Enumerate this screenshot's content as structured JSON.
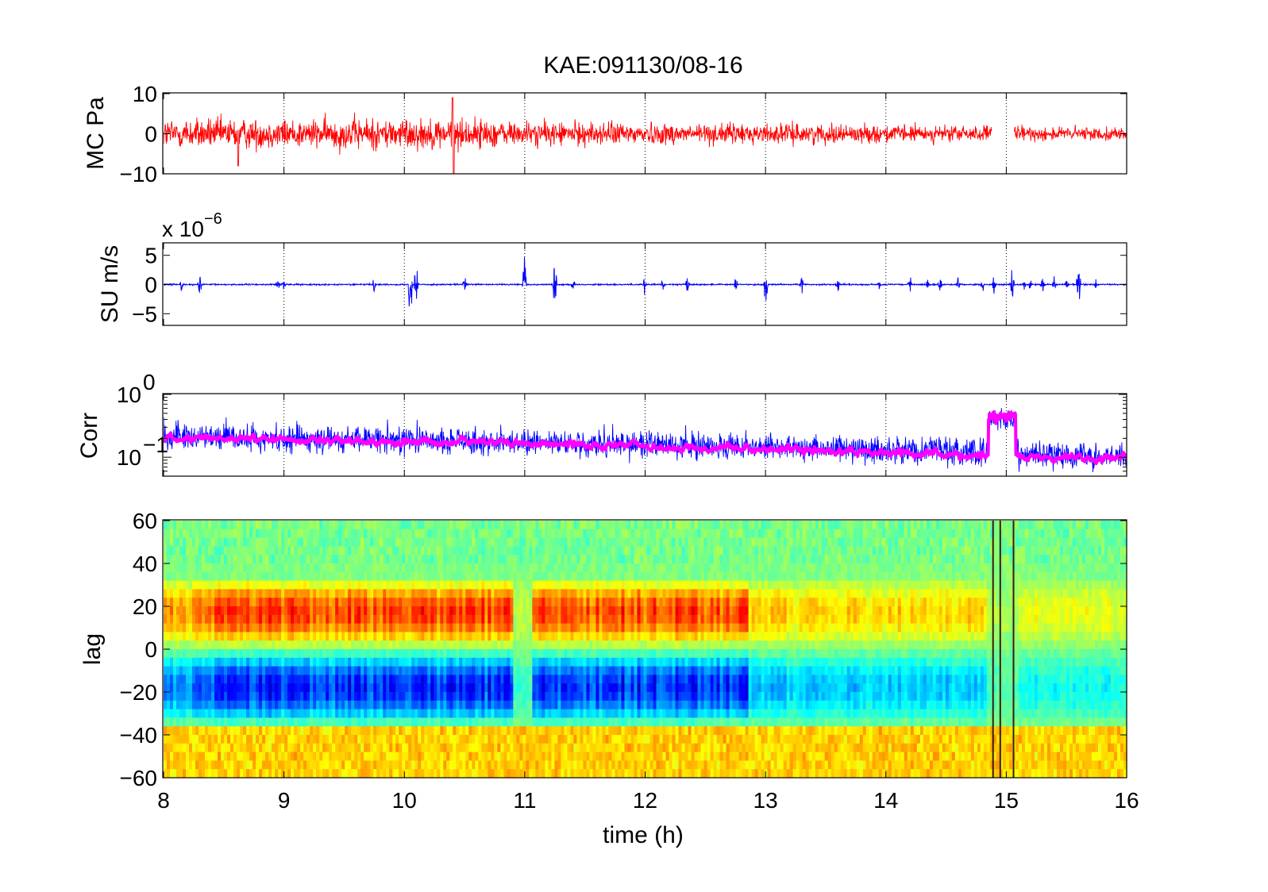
{
  "title": "KAE:091130/08-16",
  "xlabel": "time (h)",
  "x_ticks": [
    "8",
    "9",
    "10",
    "11",
    "12",
    "13",
    "14",
    "15",
    "16"
  ],
  "colors": {
    "mc": "#ff0000",
    "su": "#0000ff",
    "corr_raw": "#0000ff",
    "corr_smooth": "#ff00ff"
  },
  "chart_data": [
    {
      "type": "line",
      "name": "mc-panel",
      "ylabel": "MC Pa",
      "xlim": [
        8,
        16
      ],
      "ylim": [
        -10,
        10
      ],
      "y_ticks": [
        "10",
        "0",
        "−10"
      ],
      "grid": "vertical-dotted",
      "series": [
        {
          "values_summary": "noise amplitude approx 5 Pa 8-11h, decreasing to approx 2 Pa by 16h; gap near 14.9-15.05h",
          "envelope_start": 5,
          "envelope_end": 2,
          "peak": [
            10.4,
            9
          ]
        }
      ]
    },
    {
      "type": "line",
      "name": "su-panel",
      "ylabel": "SU m/s",
      "exponent_label": "x 10",
      "exponent_value": "−6",
      "xlim": [
        8,
        16
      ],
      "ylim": [
        -7,
        7
      ],
      "y_ticks": [
        "5",
        "0",
        "−5"
      ],
      "grid": "vertical-dotted",
      "series": [
        {
          "baseline": 0,
          "bursts_h": [
            8.15,
            8.3,
            8.95,
            9.0,
            9.75,
            10.05,
            10.1,
            10.5,
            11.0,
            11.25,
            11.4,
            12.0,
            12.15,
            12.35,
            12.75,
            13.0,
            13.3,
            13.6,
            13.95,
            14.2,
            14.35,
            14.45,
            14.6,
            14.8,
            14.9,
            15.05,
            15.15,
            15.2,
            15.3,
            15.4,
            15.5,
            15.6,
            15.75
          ]
        }
      ]
    },
    {
      "type": "line",
      "name": "corr-panel",
      "ylabel": "Corr",
      "scale": "log",
      "ylim": [
        0.05,
        1
      ],
      "y_ticks": [
        "10",
        "10"
      ],
      "y_tick_exponents": [
        "0",
        "−1"
      ],
      "xlim": [
        8,
        16
      ],
      "grid": "vertical-dotted",
      "series": [
        {
          "style": "thin-blue",
          "baseline_start": 0.22,
          "baseline_end": 0.1
        },
        {
          "style": "thick-magenta",
          "baseline_start": 0.2,
          "baseline_end": 0.09,
          "bump": [
            14.85,
            15.08,
            0.45
          ]
        }
      ]
    },
    {
      "type": "heatmap",
      "name": "lag-panel",
      "ylabel": "lag",
      "xlim": [
        8,
        16
      ],
      "ylim": [
        -60,
        60
      ],
      "y_ticks": [
        "60",
        "40",
        "20",
        "0",
        "−20",
        "−40",
        "−60"
      ],
      "colormap": "jet",
      "features": "positive correlation band 0 to 30 lag (red), negative band -5 to -30 lag (blue); weak zone near 11h and after 12.9h; dark vertical lines at 14.9h and 15.05h"
    }
  ]
}
